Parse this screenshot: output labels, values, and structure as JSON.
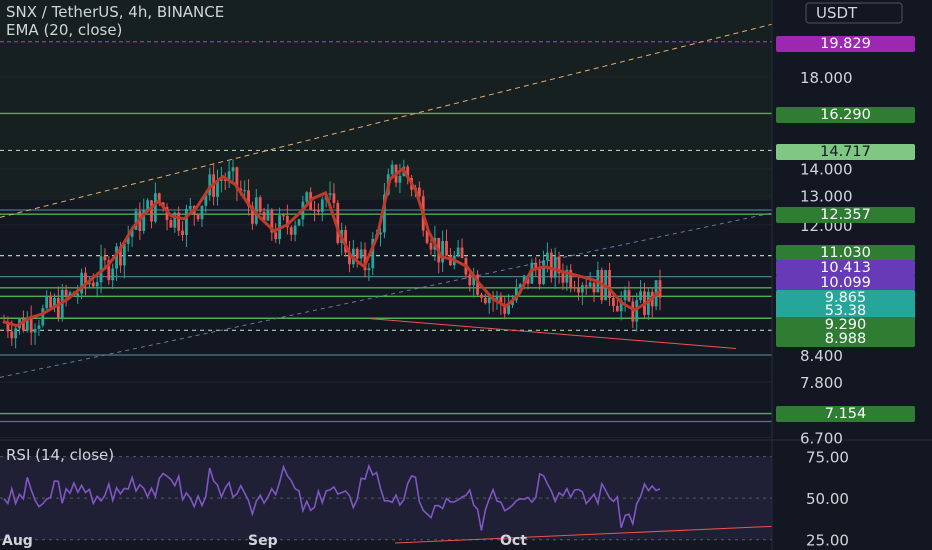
{
  "header": {
    "title": "SNX / TetherUS, 4h, BINANCE",
    "indicator": "EMA (20, close)",
    "currency": "USDT"
  },
  "rsi_panel": {
    "title": "RSI (14, close)",
    "levels": [
      "75.00",
      "50.00",
      "25.00"
    ]
  },
  "colors": {
    "background": "#131722",
    "up": "#26a69a",
    "down": "#ef5350",
    "ema": "#c0392b",
    "rsi_line": "#7e57c2",
    "horizontal_level": "#4caf50",
    "dashed_level": "#a5d6a7",
    "resistance_purple": "#9c27b0"
  },
  "chart_data": [
    {
      "type": "candlestick",
      "title": "SNX / TetherUS, 4h, BINANCE",
      "x_labels": [
        "Aug",
        "Sep",
        "Oct"
      ],
      "y_ticks": [
        18.0,
        14.0,
        13.0,
        12.0,
        8.4,
        7.8,
        6.7
      ],
      "y_tick_labels": [
        "18.000",
        "14.000",
        "13.000",
        "12.000",
        "8.400",
        "7.800",
        "6.700"
      ],
      "scale": "log",
      "price_labels": [
        {
          "value": "19.829",
          "bg": "#9c27b0",
          "fg": "#ffffff"
        },
        {
          "value": "16.290",
          "bg": "#2e7d32",
          "fg": "#ffffff"
        },
        {
          "value": "14.717",
          "bg": "#81c784",
          "fg": "#131722"
        },
        {
          "value": "12.357",
          "bg": "#2e7d32",
          "fg": "#ffffff"
        },
        {
          "value": "11.030",
          "bg": "#2e7d32",
          "fg": "#ffffff"
        },
        {
          "value": "10.413",
          "bg": "#673ab7",
          "fg": "#ffffff"
        },
        {
          "value": "10.099",
          "bg": "#673ab7",
          "fg": "#ffffff"
        },
        {
          "value": "9.865",
          "bg": "#26a69a",
          "fg": "#ffffff"
        },
        {
          "value": "53.38",
          "bg": "#26a69a",
          "fg": "#ffffff"
        },
        {
          "value": "9.290",
          "bg": "#2e7d32",
          "fg": "#ffffff"
        },
        {
          "value": "8.988",
          "bg": "#2e7d32",
          "fg": "#ffffff"
        },
        {
          "value": "7.154",
          "bg": "#2e7d32",
          "fg": "#ffffff"
        }
      ],
      "horizontal_levels_solid": [
        19.829,
        16.29,
        12.357,
        10.099,
        9.865,
        9.29,
        7.154
      ],
      "horizontal_levels_dashed": [
        14.717,
        11.03,
        8.988
      ],
      "horizontal_levels_teal": [
        12.5,
        10.413,
        8.4,
        7.0
      ],
      "series": [
        {
          "name": "EMA (20, close)",
          "values": [
            9.2,
            9.1,
            9.3,
            9.4,
            9.6,
            9.8,
            10.1,
            10.4,
            10.7,
            11.2,
            11.9,
            12.4,
            12.8,
            12.3,
            12.2,
            12.6,
            13.3,
            13.7,
            13.4,
            12.7,
            12.2,
            11.8,
            12.0,
            12.4,
            12.9,
            13.1,
            11.8,
            11.0,
            10.7,
            11.6,
            13.6,
            14.0,
            13.2,
            11.8,
            11.0,
            10.9,
            10.7,
            10.2,
            9.8,
            9.6,
            9.9,
            10.6,
            10.7,
            10.6,
            10.5,
            10.4,
            10.3,
            10.1,
            9.7,
            9.5,
            9.7,
            10.0
          ]
        }
      ]
    },
    {
      "type": "line",
      "title": "RSI (14, close)",
      "y_ticks": [
        75.0,
        50.0,
        25.0
      ],
      "ylim": [
        20,
        85
      ],
      "series": [
        {
          "name": "RSI (14, close)",
          "values": [
            52,
            48,
            58,
            40,
            60,
            48,
            62,
            44,
            56,
            52,
            62,
            58,
            55,
            66,
            52,
            46,
            62,
            48,
            58,
            42,
            52,
            58,
            64,
            48,
            40,
            58,
            52,
            46,
            65,
            68,
            40,
            52,
            60,
            36,
            48,
            44,
            52,
            34,
            58,
            46,
            56,
            50,
            70,
            52,
            58,
            48,
            52,
            56,
            38,
            40,
            58,
            53
          ]
        }
      ]
    }
  ]
}
